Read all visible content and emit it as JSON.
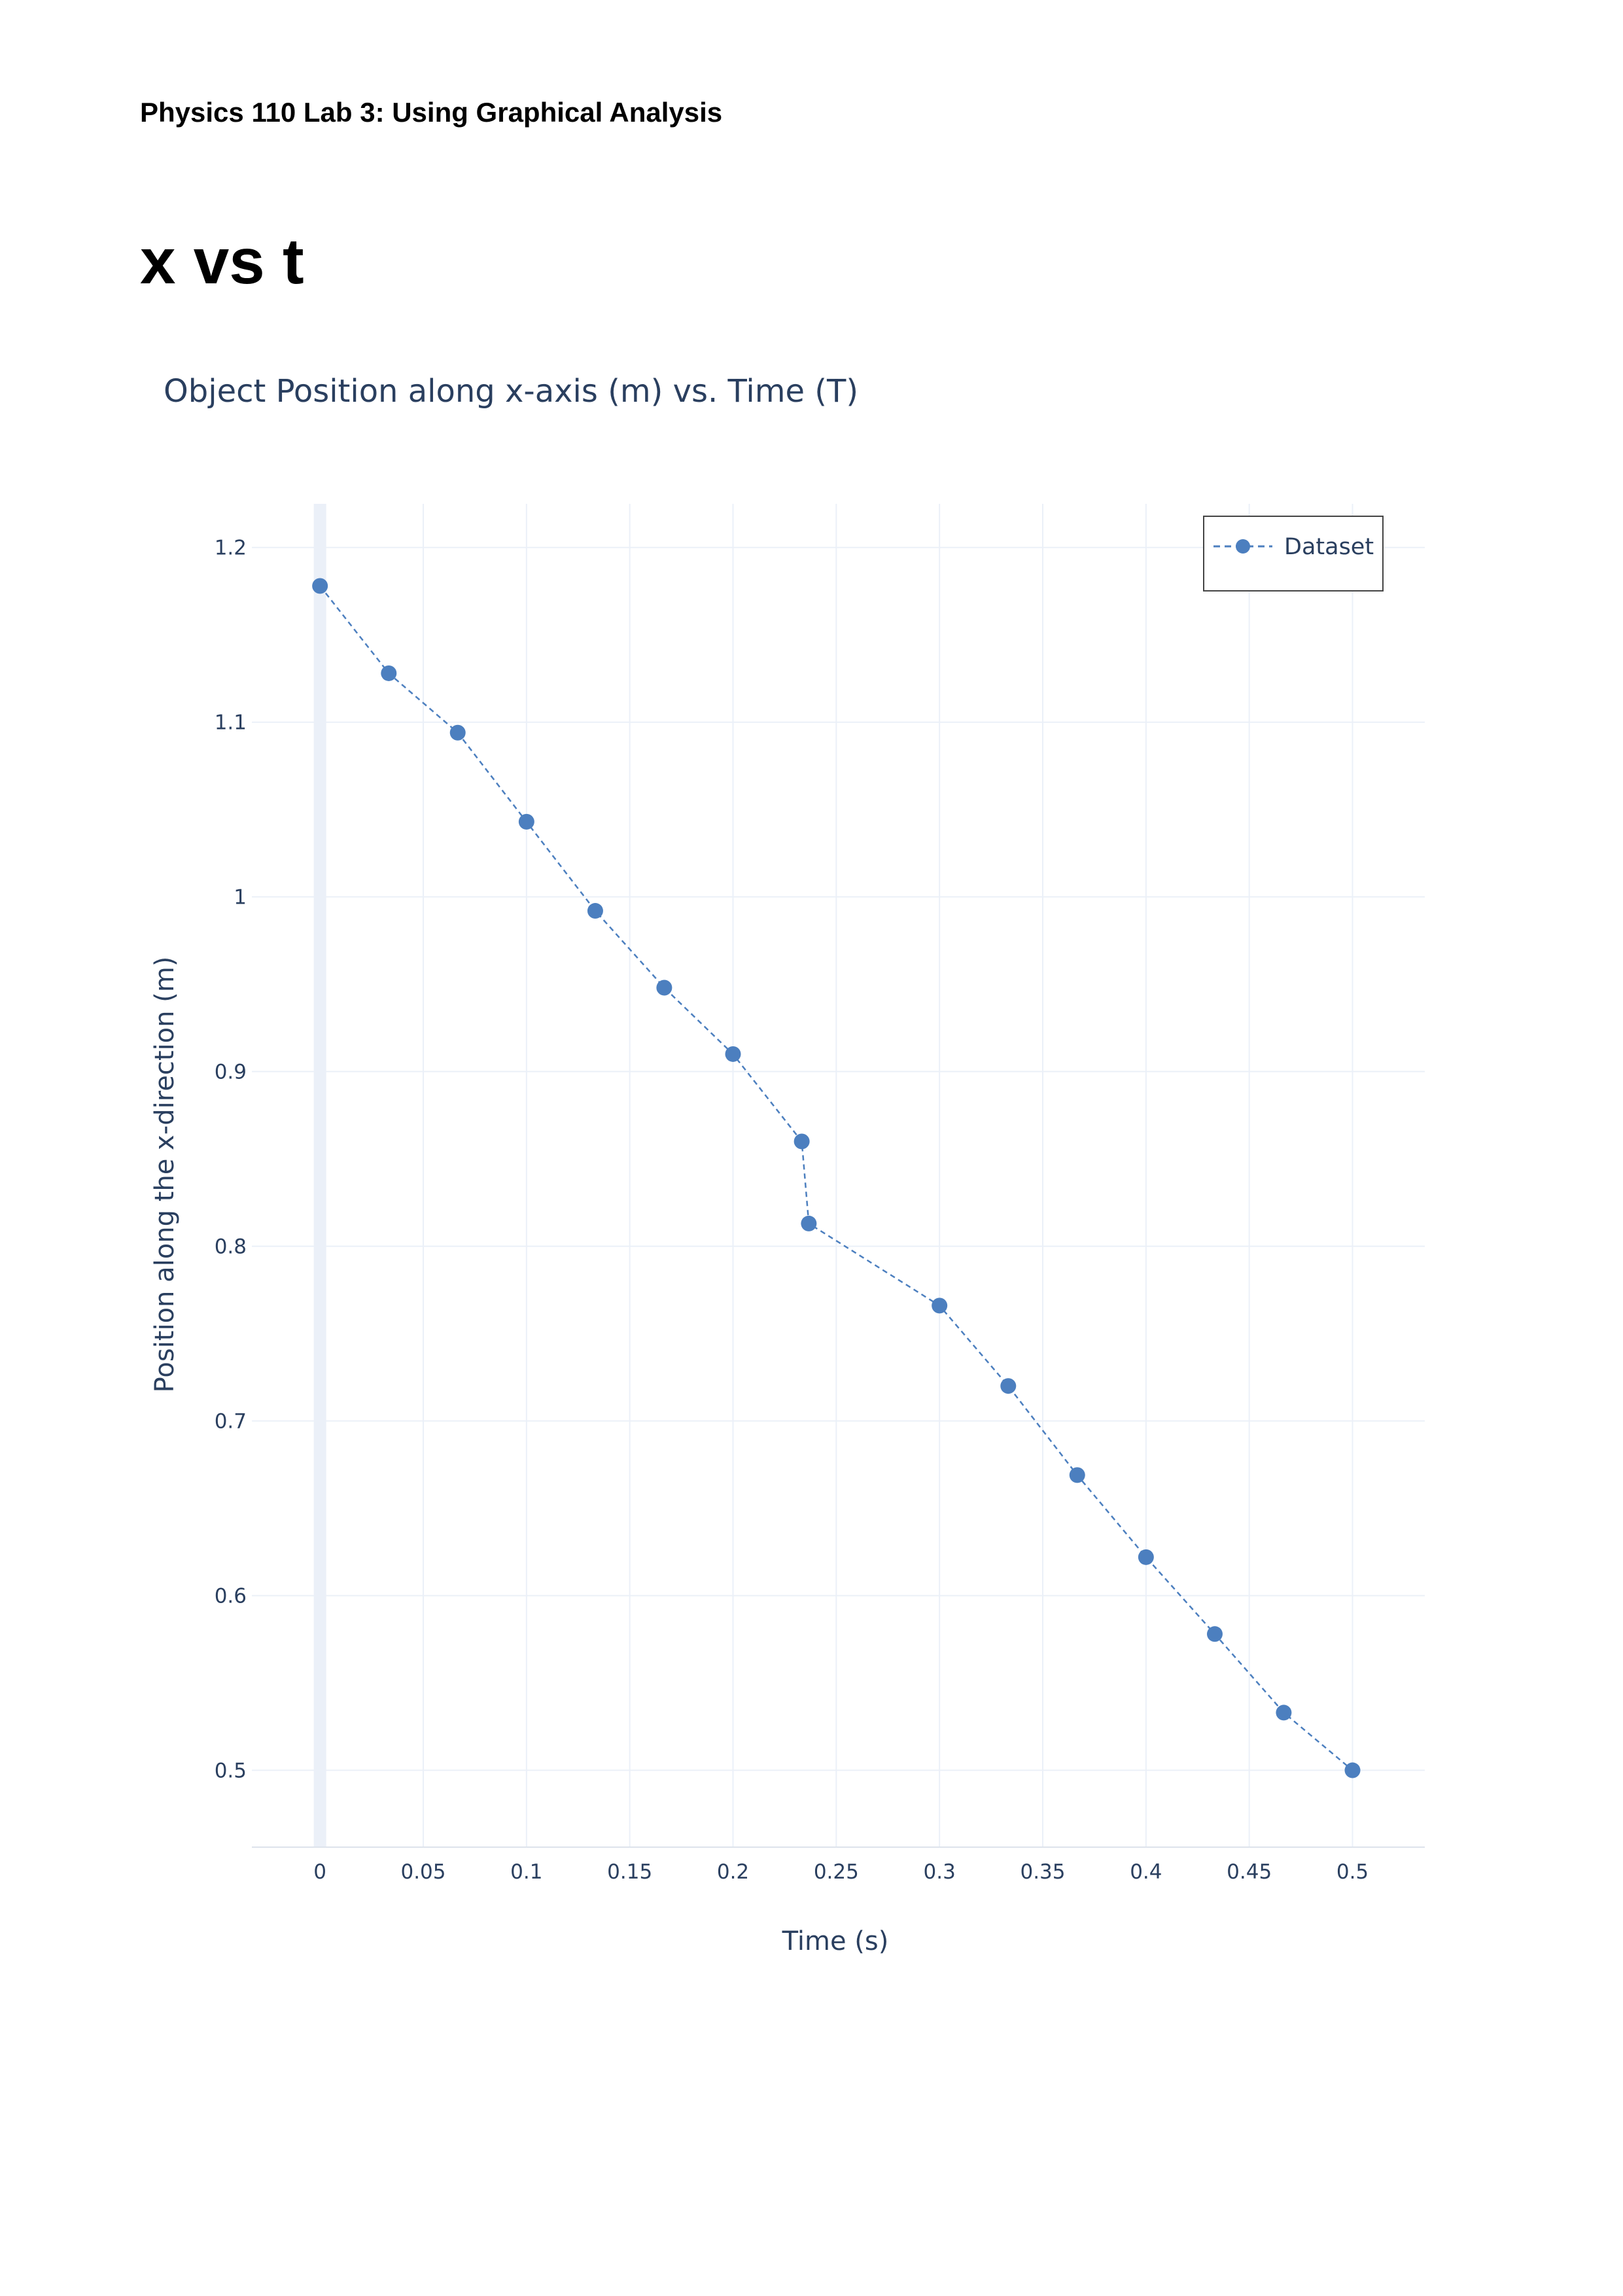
{
  "header": {
    "text": "Physics 110 Lab 3: Using Graphical Analysis"
  },
  "section": {
    "title": "x vs t"
  },
  "chart_data": {
    "type": "scatter",
    "mode": "lines+markers",
    "title": "Object Position along x-axis (m) vs. Time (T)",
    "xlabel": "Time (s)",
    "ylabel": "Position along the x-direction (m)",
    "xlim": [
      -0.033,
      0.535
    ],
    "ylim": [
      0.456,
      1.225
    ],
    "xticks": [
      0,
      0.05,
      0.1,
      0.15,
      0.2,
      0.25,
      0.3,
      0.35,
      0.4,
      0.45,
      0.5
    ],
    "xtick_labels": [
      "0",
      "0.05",
      "0.1",
      "0.15",
      "0.2",
      "0.25",
      "0.3",
      "0.35",
      "0.4",
      "0.45",
      "0.5"
    ],
    "yticks": [
      0.5,
      0.6,
      0.7,
      0.8,
      0.9,
      1.0,
      1.1,
      1.2
    ],
    "ytick_labels": [
      "0.5",
      "0.6",
      "0.7",
      "0.8",
      "0.9",
      "1",
      "1.1",
      "1.2"
    ],
    "grid": true,
    "legend_position": "top-right",
    "series": [
      {
        "name": "Dataset",
        "color": "#4c7fbf",
        "line_style": "dashed",
        "x": [
          0,
          0.0333,
          0.0667,
          0.1,
          0.1333,
          0.1667,
          0.2,
          0.2333,
          0.2367,
          0.3,
          0.3333,
          0.3667,
          0.4,
          0.4333,
          0.4667,
          0.5
        ],
        "y": [
          1.178,
          1.128,
          1.094,
          1.043,
          0.992,
          0.948,
          0.91,
          0.86,
          0.813,
          0.766,
          0.72,
          0.669,
          0.622,
          0.578,
          0.533,
          0.5
        ]
      }
    ]
  }
}
